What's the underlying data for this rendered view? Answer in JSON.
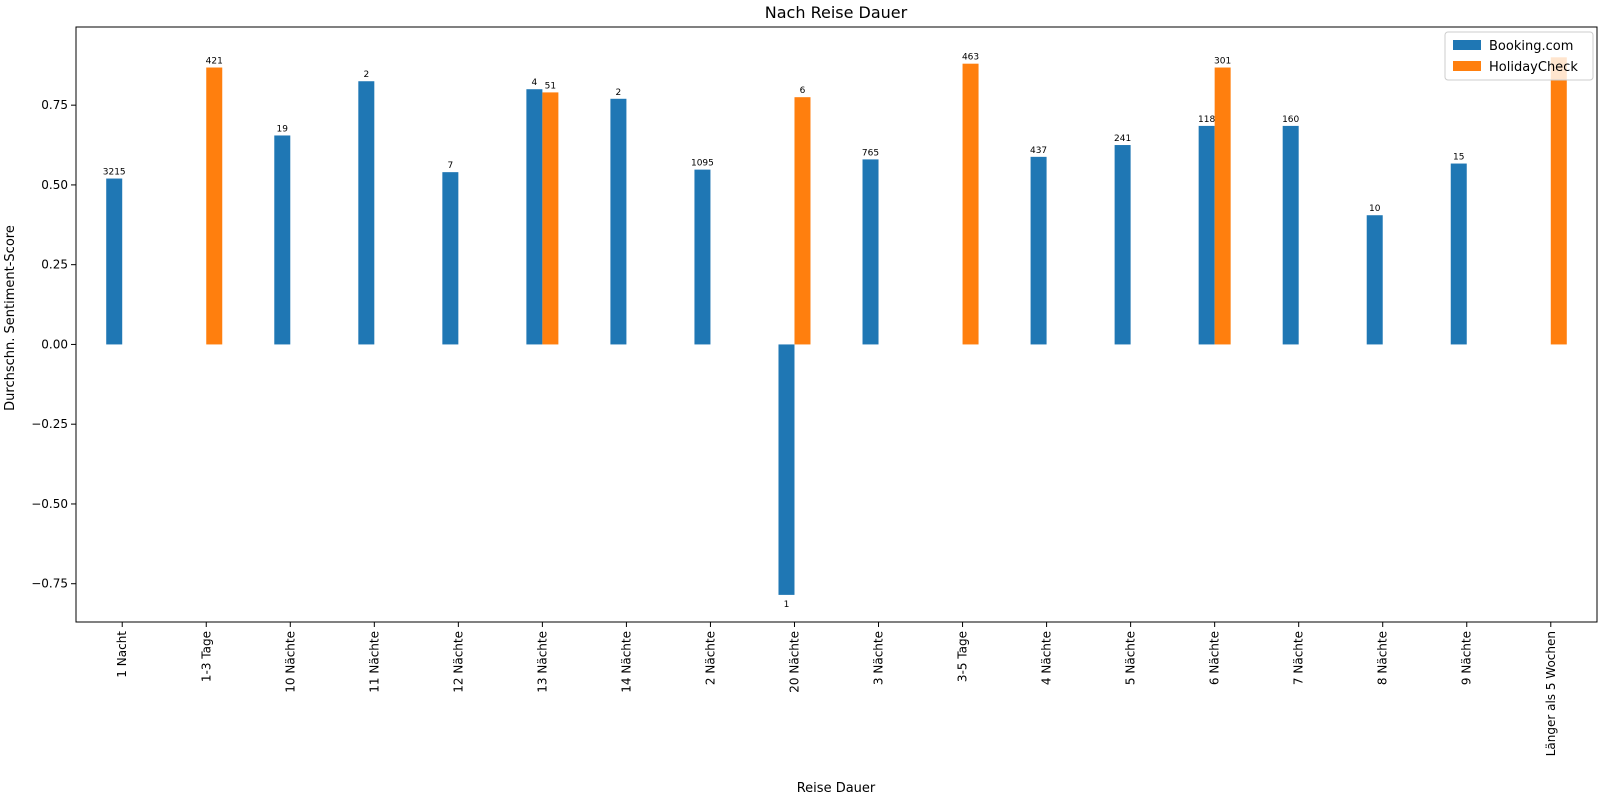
{
  "chart_data": {
    "type": "bar",
    "title": "Nach Reise Dauer",
    "xlabel": "Reise Dauer",
    "ylabel": "Durchschn. Sentiment-Score",
    "ylim": [
      -0.87,
      0.995
    ],
    "yticks": [
      -0.75,
      -0.5,
      -0.25,
      0.0,
      0.25,
      0.5,
      0.75
    ],
    "ytick_labels": [
      "−0.75",
      "−0.50",
      "−0.25",
      "0.00",
      "0.25",
      "0.50",
      "0.75"
    ],
    "grid": false,
    "legend_position": "top-right",
    "categories": [
      "1 Nacht",
      "1-3 Tage",
      "10 Nächte",
      "11 Nächte",
      "12 Nächte",
      "13 Nächte",
      "14 Nächte",
      "2 Nächte",
      "20 Nächte",
      "3 Nächte",
      "3-5 Tage",
      "4 Nächte",
      "5 Nächte",
      "6 Nächte",
      "7 Nächte",
      "8 Nächte",
      "9 Nächte",
      "Länger als 5 Wochen"
    ],
    "series": [
      {
        "name": "Booking.com",
        "color": "#1f77b4",
        "values": [
          0.52,
          null,
          0.655,
          0.825,
          0.54,
          0.8,
          0.77,
          0.548,
          -0.785,
          0.58,
          null,
          0.588,
          0.625,
          0.685,
          0.685,
          0.405,
          0.567,
          null
        ],
        "labels": [
          "3215",
          null,
          "19",
          "2",
          "7",
          "4",
          "2",
          "1095",
          "1",
          "765",
          null,
          "437",
          "241",
          "118",
          "160",
          "10",
          "15",
          null
        ]
      },
      {
        "name": "HolidayCheck",
        "color": "#ff7f0e",
        "values": [
          null,
          0.868,
          null,
          null,
          null,
          0.79,
          null,
          null,
          0.775,
          null,
          0.88,
          null,
          null,
          0.868,
          null,
          null,
          null,
          0.9
        ],
        "labels": [
          null,
          "421",
          null,
          null,
          null,
          "51",
          null,
          null,
          "6",
          null,
          "463",
          null,
          null,
          "301",
          null,
          null,
          null,
          null
        ]
      }
    ]
  }
}
